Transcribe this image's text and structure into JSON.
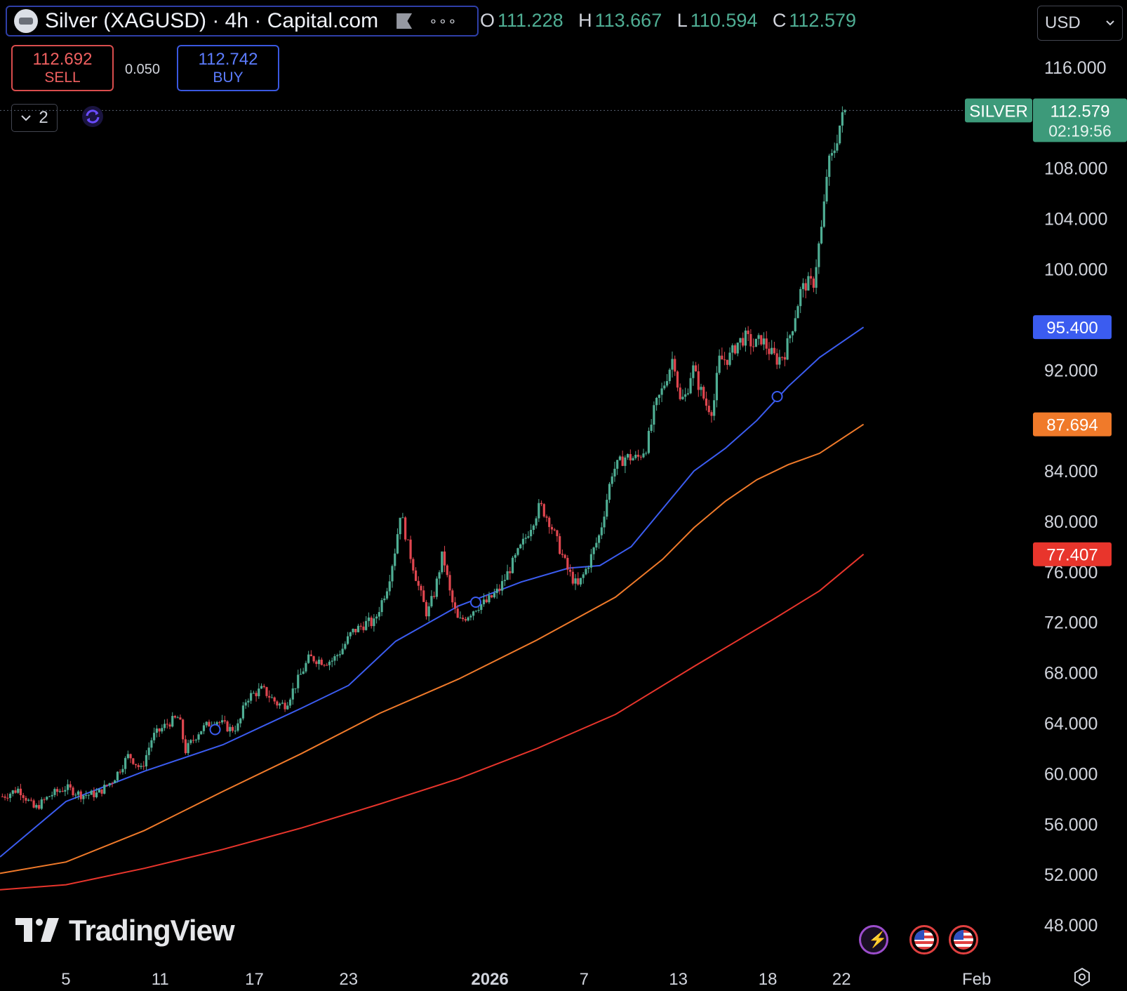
{
  "header": {
    "title": "Silver (XAGUSD) · 4h · Capital.com",
    "more_glyph": "∘∘∘",
    "ohlc": {
      "o_label": "O",
      "o_value": "111.228",
      "h_label": "H",
      "h_value": "113.667",
      "l_label": "L",
      "l_value": "110.594",
      "c_label": "C",
      "c_value": "112.579"
    }
  },
  "currency": {
    "label": "USD"
  },
  "trade": {
    "sell_price": "112.692",
    "sell_label": "SELL",
    "spread": "0.050",
    "buy_price": "112.742",
    "buy_label": "BUY"
  },
  "indicators_toggle": {
    "count": "2"
  },
  "watermark": {
    "brand": "TradingView"
  },
  "colors": {
    "up": "#4fae94",
    "down": "#e0464f",
    "ma_fast": "#3b5cf0",
    "ma_mid": "#f07a2a",
    "ma_slow": "#e8352c",
    "price_label": "#3d9a7a"
  },
  "chart_data": {
    "type": "candlestick",
    "instrument": "Silver (XAGUSD)",
    "timeframe": "4h",
    "ylim": [
      45.0,
      118.0
    ],
    "y_ticks": [
      "116.000",
      "108.000",
      "104.000",
      "100.000",
      "92.000",
      "84.000",
      "80.000",
      "76.000",
      "72.000",
      "68.000",
      "64.000",
      "60.000",
      "56.000",
      "52.000",
      "48.000"
    ],
    "x_ticks": [
      {
        "label": "5",
        "day": 5
      },
      {
        "label": "11",
        "day": 11
      },
      {
        "label": "17",
        "day": 17
      },
      {
        "label": "23",
        "day": 23
      },
      {
        "label": "2026",
        "day": 32,
        "bold": true
      },
      {
        "label": "7",
        "day": 38
      },
      {
        "label": "13",
        "day": 44
      },
      {
        "label": "18",
        "day": 49.7
      },
      {
        "label": "22",
        "day": 54.4
      },
      {
        "label": "Feb",
        "day": 63
      }
    ],
    "x_range_days": [
      0.8,
      66.5
    ],
    "last_day": 55.8,
    "price_anchors": [
      [
        1.0,
        58.2
      ],
      [
        2.0,
        58.8
      ],
      [
        3.0,
        57.2
      ],
      [
        4.0,
        58.3
      ],
      [
        5.0,
        58.9
      ],
      [
        6.0,
        58.3
      ],
      [
        7.0,
        58.4
      ],
      [
        8.0,
        59.5
      ],
      [
        9.0,
        61.5
      ],
      [
        9.8,
        60.3
      ],
      [
        10.5,
        62.9
      ],
      [
        11.5,
        64.0
      ],
      [
        12.2,
        64.5
      ],
      [
        12.6,
        61.8
      ],
      [
        13.5,
        63.4
      ],
      [
        14.5,
        64.3
      ],
      [
        15.5,
        63.5
      ],
      [
        16.0,
        63.8
      ],
      [
        16.5,
        66.0
      ],
      [
        17.5,
        66.7
      ],
      [
        18.5,
        65.5
      ],
      [
        19.0,
        65.5
      ],
      [
        19.6,
        67.0
      ],
      [
        20.5,
        69.2
      ],
      [
        21.5,
        68.9
      ],
      [
        22.0,
        69.0
      ],
      [
        22.6,
        69.9
      ],
      [
        23.2,
        71.2
      ],
      [
        24.2,
        72.0
      ],
      [
        24.6,
        71.9
      ],
      [
        25.5,
        75.0
      ],
      [
        26.0,
        78.0
      ],
      [
        26.3,
        80.8
      ],
      [
        26.8,
        78.0
      ],
      [
        27.5,
        74.6
      ],
      [
        28.0,
        72.6
      ],
      [
        28.5,
        74.5
      ],
      [
        29.0,
        77.5
      ],
      [
        29.5,
        74.0
      ],
      [
        30.0,
        72.0
      ],
      [
        30.6,
        72.6
      ],
      [
        31.2,
        73.3
      ],
      [
        31.8,
        73.6
      ],
      [
        32.6,
        74.6
      ],
      [
        33.5,
        76.8
      ],
      [
        34.2,
        78.5
      ],
      [
        34.8,
        80.2
      ],
      [
        35.2,
        81.3
      ],
      [
        35.8,
        80.0
      ],
      [
        36.4,
        78.0
      ],
      [
        37.0,
        76.0
      ],
      [
        37.6,
        74.8
      ],
      [
        38.2,
        76.4
      ],
      [
        39.0,
        79.0
      ],
      [
        39.8,
        84.0
      ],
      [
        40.6,
        85.1
      ],
      [
        41.4,
        85.0
      ],
      [
        42.0,
        86.0
      ],
      [
        42.5,
        89.0
      ],
      [
        43.0,
        90.5
      ],
      [
        43.4,
        92.0
      ],
      [
        43.7,
        93.2
      ],
      [
        44.1,
        89.5
      ],
      [
        44.5,
        90.0
      ],
      [
        44.9,
        92.3
      ],
      [
        45.3,
        90.8
      ],
      [
        45.8,
        89.2
      ],
      [
        46.2,
        88.8
      ],
      [
        46.6,
        92.8
      ],
      [
        47.2,
        92.9
      ],
      [
        47.8,
        94.2
      ],
      [
        48.3,
        94.6
      ],
      [
        48.8,
        93.9
      ],
      [
        49.3,
        94.5
      ],
      [
        49.8,
        93.5
      ],
      [
        50.3,
        92.8
      ],
      [
        50.8,
        93.4
      ],
      [
        51.3,
        95.6
      ],
      [
        51.8,
        98.3
      ],
      [
        52.2,
        98.9
      ],
      [
        52.6,
        98.8
      ],
      [
        52.9,
        101.5
      ],
      [
        53.2,
        103.8
      ],
      [
        53.5,
        108.2
      ],
      [
        53.8,
        108.9
      ],
      [
        54.0,
        109.8
      ],
      [
        54.3,
        111.5
      ],
      [
        54.6,
        112.5
      ]
    ],
    "series": [
      {
        "name": "",
        "label": "95.400",
        "color": "#3b5cf0",
        "points": [
          [
            0.8,
            53.4
          ],
          [
            5,
            57.8
          ],
          [
            10,
            60.2
          ],
          [
            15,
            62.3
          ],
          [
            20,
            65.2
          ],
          [
            23,
            67.0
          ],
          [
            26,
            70.5
          ],
          [
            30,
            73.3
          ],
          [
            34,
            75.2
          ],
          [
            37,
            76.3
          ],
          [
            39,
            76.5
          ],
          [
            41,
            78.0
          ],
          [
            43,
            81.0
          ],
          [
            45,
            84.0
          ],
          [
            47,
            85.8
          ],
          [
            49,
            88.0
          ],
          [
            51,
            90.7
          ],
          [
            53,
            93.0
          ],
          [
            55.8,
            95.4
          ]
        ]
      },
      {
        "name": "",
        "label": "87.694",
        "color": "#f07a2a",
        "points": [
          [
            0.8,
            52.1
          ],
          [
            5,
            53.0
          ],
          [
            10,
            55.5
          ],
          [
            15,
            58.6
          ],
          [
            20,
            61.6
          ],
          [
            25,
            64.8
          ],
          [
            30,
            67.5
          ],
          [
            35,
            70.6
          ],
          [
            40,
            74.0
          ],
          [
            43,
            77.0
          ],
          [
            45,
            79.5
          ],
          [
            47,
            81.6
          ],
          [
            49,
            83.3
          ],
          [
            51,
            84.5
          ],
          [
            53,
            85.4
          ],
          [
            55.8,
            87.7
          ]
        ]
      },
      {
        "name": "",
        "label": "77.407",
        "color": "#e8352c",
        "points": [
          [
            0.8,
            50.8
          ],
          [
            5,
            51.2
          ],
          [
            10,
            52.5
          ],
          [
            15,
            54.0
          ],
          [
            20,
            55.7
          ],
          [
            25,
            57.6
          ],
          [
            30,
            59.6
          ],
          [
            35,
            62.0
          ],
          [
            40,
            64.7
          ],
          [
            45,
            68.5
          ],
          [
            50,
            72.2
          ],
          [
            53,
            74.5
          ],
          [
            55.8,
            77.4
          ]
        ]
      }
    ],
    "last_price": {
      "symbol": "SILVER",
      "value": "112.579",
      "countdown": "02:19:56"
    },
    "markers": [
      [
        14.5,
        63.5
      ],
      [
        31.1,
        73.6
      ],
      [
        50.3,
        89.9
      ]
    ]
  }
}
